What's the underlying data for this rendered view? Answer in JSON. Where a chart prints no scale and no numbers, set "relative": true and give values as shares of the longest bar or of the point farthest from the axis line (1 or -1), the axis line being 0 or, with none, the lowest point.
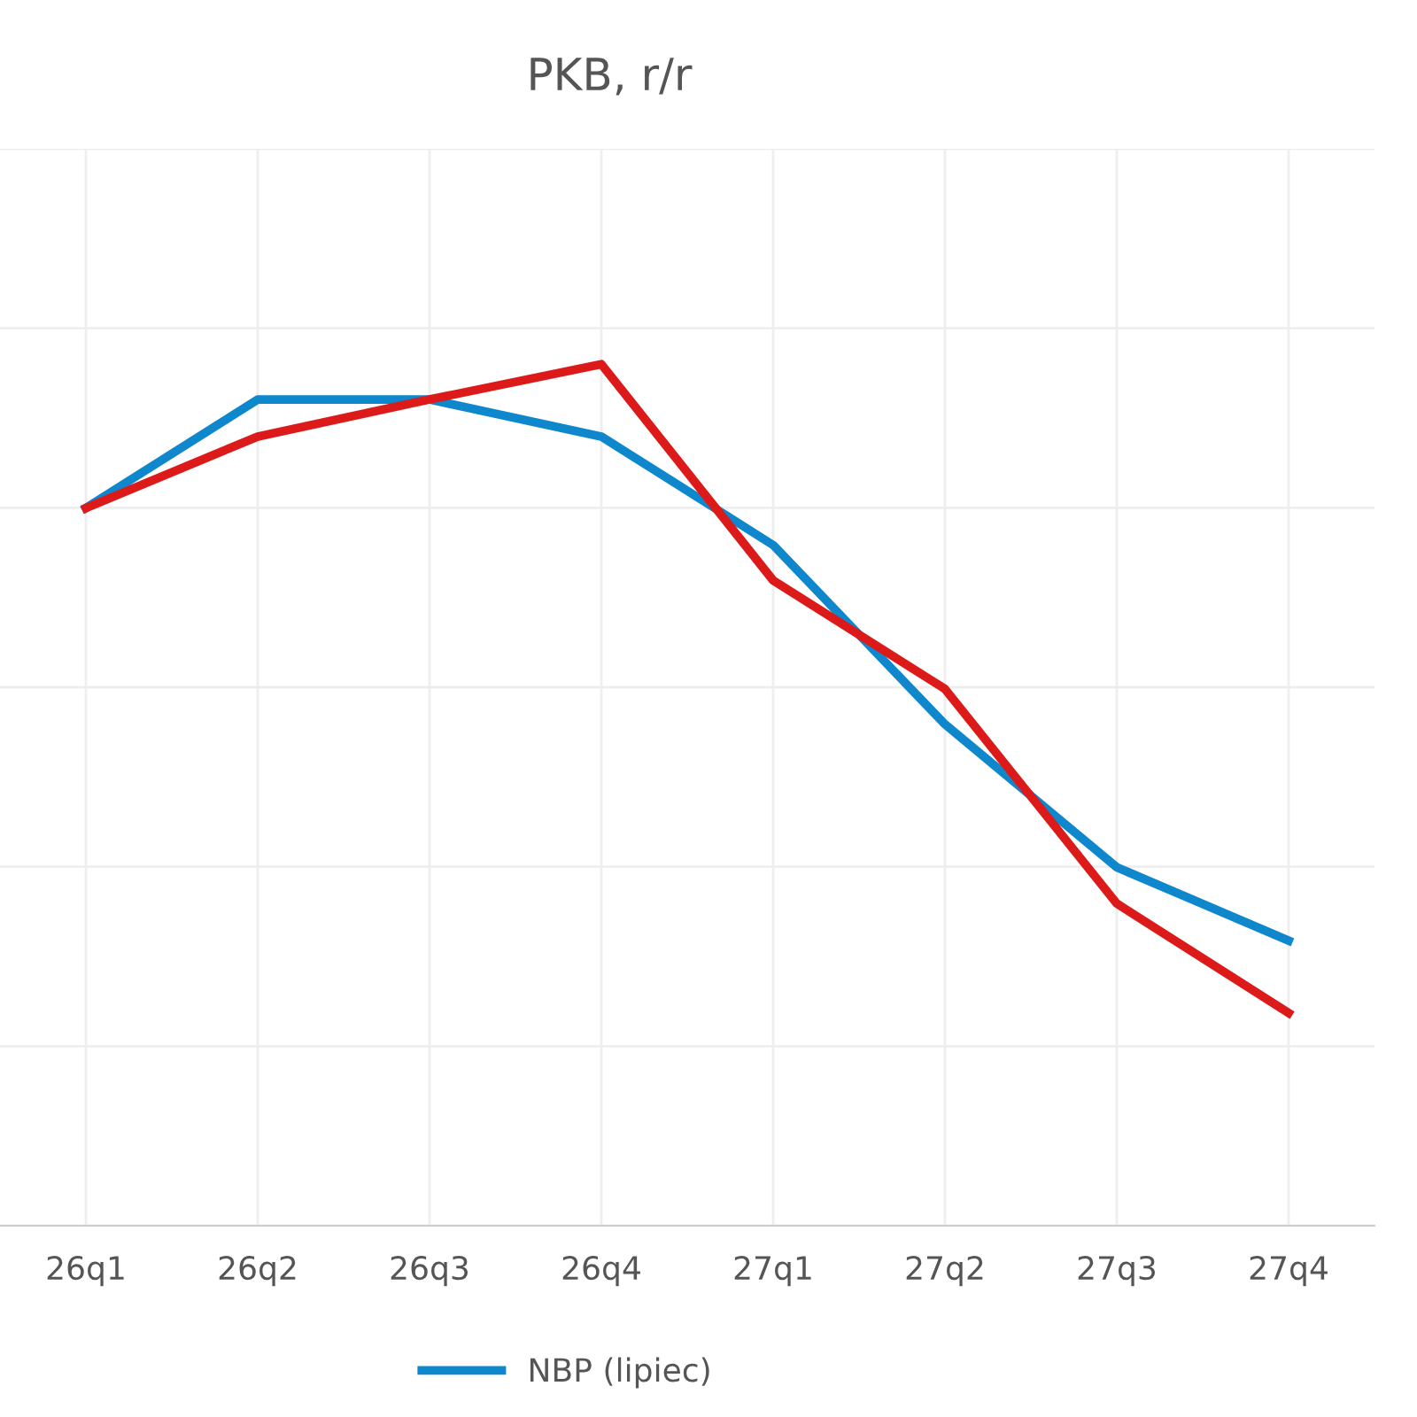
{
  "chart_data": {
    "type": "line",
    "title": "PKB, r/r",
    "relative": true,
    "grid": true,
    "legend": "bottom",
    "line_style": "solid",
    "marker": "none",
    "categories": [
      "26q1",
      "26q2",
      "26q3",
      "26q4",
      "27q1",
      "27q2",
      "27q3",
      "27q4"
    ],
    "series": [
      {
        "name": "NBP (lipiec)",
        "color": "#0f87cc",
        "values": [
          0.833,
          0.959,
          0.959,
          0.916,
          0.79,
          0.582,
          0.416,
          0.331
        ]
      },
      {
        "color": "#dd1a1a",
        "values": [
          0.833,
          0.916,
          0.959,
          1.0,
          0.749,
          0.623,
          0.374,
          0.247
        ]
      }
    ]
  }
}
